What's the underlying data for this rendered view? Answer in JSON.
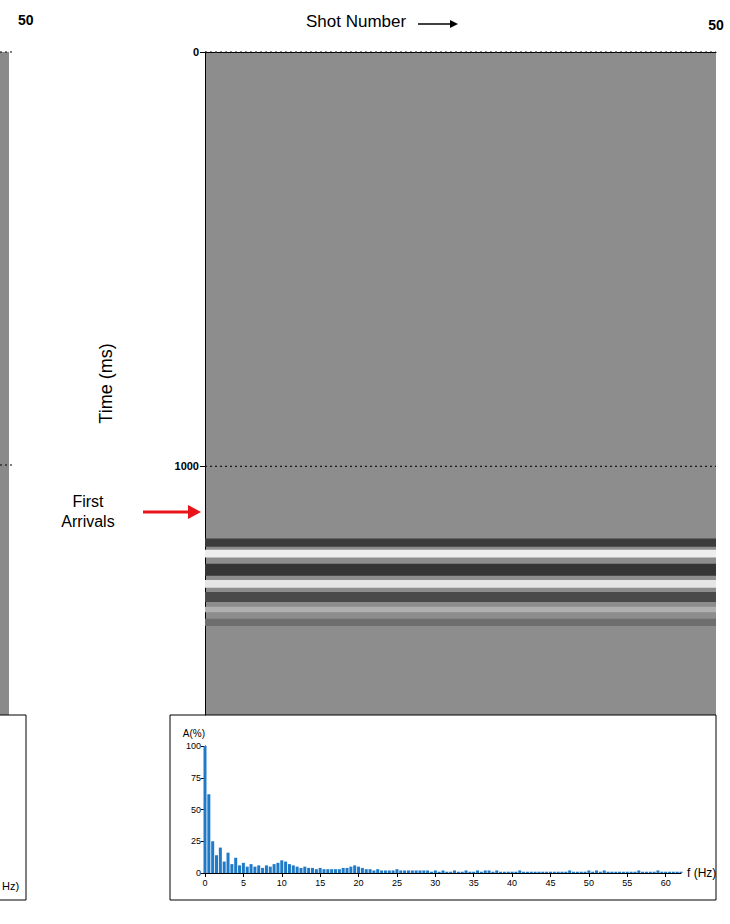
{
  "chart_data": [
    {
      "type": "image",
      "x_label": "Shot Number",
      "y_label": "Time (ms)",
      "xlim": [
        0,
        50
      ],
      "xticks": [
        50
      ],
      "ylim": [
        0,
        1600
      ],
      "yticks": [
        0,
        1000
      ],
      "grid": true,
      "annotation": {
        "text": "First Arrivals",
        "y": 1110
      },
      "bands": [
        {
          "from": 1174,
          "to": 1194,
          "color": "#3c3c3c"
        },
        {
          "from": 1201,
          "to": 1220,
          "color": "#eeeeee"
        },
        {
          "from": 1235,
          "to": 1264,
          "color": "#353535"
        },
        {
          "from": 1274,
          "to": 1293,
          "color": "#e6e6e6"
        },
        {
          "from": 1303,
          "to": 1327,
          "color": "#4a4a4a"
        },
        {
          "from": 1339,
          "to": 1352,
          "color": "#b0b0b0"
        },
        {
          "from": 1368,
          "to": 1385,
          "color": "#6e6e6e"
        }
      ]
    },
    {
      "type": "bar",
      "x_label": "f (Hz)",
      "y_label": "A(%)",
      "color": "#1f7ac8",
      "xlim": [
        0,
        62
      ],
      "xticks": [
        0,
        5,
        10,
        15,
        20,
        25,
        30,
        35,
        40,
        45,
        50,
        55,
        60
      ],
      "ylim": [
        0,
        100
      ],
      "yticks": [
        0,
        25,
        50,
        75,
        100
      ],
      "x": [
        0,
        0.5,
        1,
        1.5,
        2,
        2.5,
        3,
        3.5,
        4,
        4.5,
        5,
        5.5,
        6,
        6.5,
        7,
        7.5,
        8,
        8.5,
        9,
        9.5,
        10,
        10.5,
        11,
        11.5,
        12,
        12.5,
        13,
        13.5,
        14,
        14.5,
        15,
        15.5,
        16,
        16.5,
        17,
        17.5,
        18,
        18.5,
        19,
        19.5,
        20,
        20.5,
        21,
        21.5,
        22,
        22.5,
        23,
        23.5,
        24,
        24.5,
        25,
        25.5,
        26,
        26.5,
        27,
        27.5,
        28,
        28.5,
        29,
        29.5,
        30,
        30.5,
        31,
        31.5,
        32,
        32.5,
        33,
        33.5,
        34,
        34.5,
        35,
        35.5,
        36,
        36.5,
        37,
        37.5,
        38,
        38.5,
        39,
        39.5,
        40,
        40.5,
        41,
        41.5,
        42,
        42.5,
        43,
        43.5,
        44,
        44.5,
        45,
        45.5,
        46,
        46.5,
        47,
        47.5,
        48,
        48.5,
        49,
        49.5,
        50,
        50.5,
        51,
        51.5,
        52,
        52.5,
        53,
        53.5,
        54,
        54.5,
        55,
        55.5,
        56,
        56.5,
        57,
        57.5,
        58,
        58.5,
        59,
        59.5,
        60,
        60.5,
        61,
        61.5,
        62
      ],
      "values": [
        100,
        62,
        25,
        14,
        20,
        9,
        16,
        7,
        12,
        6,
        8,
        5,
        7,
        5,
        6,
        4,
        6,
        5,
        7,
        8,
        10,
        9,
        7,
        6,
        5,
        4,
        5,
        4,
        4,
        3,
        4,
        3,
        3,
        3,
        3,
        3,
        4,
        4,
        5,
        6,
        5,
        4,
        3,
        3,
        2,
        3,
        2,
        2,
        2,
        2,
        3,
        2,
        2,
        2,
        2,
        2,
        2,
        2,
        2,
        1,
        2,
        1,
        2,
        1,
        1,
        2,
        1,
        1,
        2,
        1,
        1,
        2,
        1,
        2,
        2,
        1,
        2,
        1,
        1,
        1,
        1,
        1,
        2,
        1,
        1,
        1,
        1,
        1,
        1,
        1,
        1,
        1,
        1,
        1,
        1,
        2,
        1,
        1,
        1,
        1,
        2,
        1,
        2,
        1,
        2,
        1,
        1,
        1,
        1,
        1,
        1,
        1,
        1,
        2,
        1,
        1,
        1,
        1,
        2,
        1,
        1,
        1,
        1,
        1,
        1
      ]
    }
  ],
  "fragments": {
    "texts": [
      "50",
      "Hz)"
    ]
  }
}
